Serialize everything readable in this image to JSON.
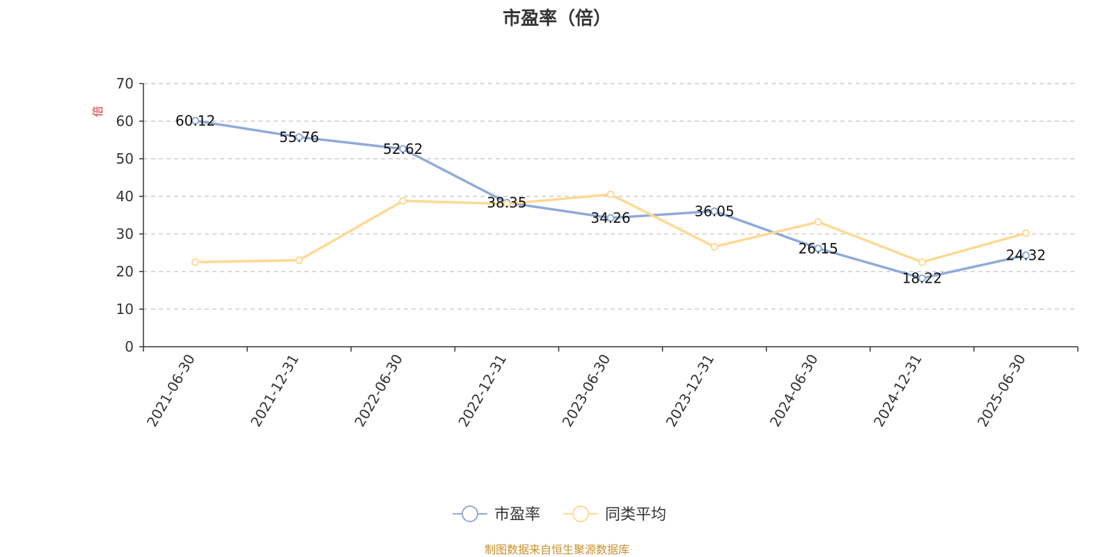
{
  "chart_data": {
    "type": "line",
    "title": "市盈率（倍）",
    "ylabel": "倍",
    "xlabel": "",
    "categories": [
      "2021-06-30",
      "2021-12-31",
      "2022-06-30",
      "2022-12-31",
      "2023-06-30",
      "2023-12-31",
      "2024-06-30",
      "2024-12-31",
      "2025-06-30"
    ],
    "ylim": [
      0,
      70
    ],
    "yticks": [
      0,
      10,
      20,
      30,
      40,
      50,
      60,
      70
    ],
    "grid": true,
    "legend_position": "bottom-center",
    "series": [
      {
        "name": "市盈率",
        "color": "#8eaad8",
        "values": [
          60.12,
          55.76,
          52.62,
          38.35,
          34.26,
          36.05,
          26.15,
          18.22,
          24.32
        ],
        "labels": [
          "60.12",
          "55.76",
          "52.62",
          "38.35",
          "34.26",
          "36.05",
          "26.15",
          "18.22",
          "24.32"
        ]
      },
      {
        "name": "同类平均",
        "color": "#fdd993",
        "values": [
          22.5,
          23.0,
          38.8,
          38.0,
          40.5,
          26.6,
          33.2,
          22.5,
          30.2
        ]
      }
    ]
  },
  "footer": {
    "source": "制图数据来自恒生聚源数据库"
  },
  "colors": {
    "axis": "#333333",
    "grid": "#cccccc",
    "ylabel": "#e03030",
    "source": "#c8902c"
  }
}
